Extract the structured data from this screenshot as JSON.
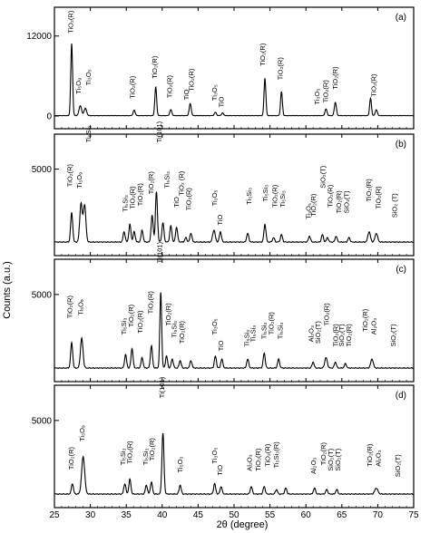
{
  "chart_data": {
    "type": "line",
    "xlabel": "2θ (degree)",
    "ylabel": "Counts (a.u.)",
    "xlim": [
      25,
      75
    ],
    "x_ticks": [
      "25",
      "30",
      "35",
      "40",
      "45",
      "50",
      "55",
      "60",
      "65",
      "70",
      "75"
    ],
    "panels": [
      {
        "label": "(a)",
        "ylim": [
          0,
          15500
        ],
        "y_ticks": [
          {
            "value": 0,
            "label": "0"
          },
          {
            "value": 12000,
            "label": "12000"
          }
        ],
        "peaks": [
          {
            "x": 27.4,
            "y": 10800,
            "w": 0.18
          },
          {
            "x": 28.6,
            "y": 1500,
            "w": 0.25
          },
          {
            "x": 29.3,
            "y": 1100,
            "w": 0.25
          },
          {
            "x": 36.1,
            "y": 800,
            "w": 0.2
          },
          {
            "x": 39.1,
            "y": 4300,
            "w": 0.18
          },
          {
            "x": 41.2,
            "y": 900,
            "w": 0.2
          },
          {
            "x": 43.9,
            "y": 1800,
            "w": 0.2
          },
          {
            "x": 47.4,
            "y": 500,
            "w": 0.2
          },
          {
            "x": 48.4,
            "y": 400,
            "w": 0.2
          },
          {
            "x": 54.3,
            "y": 5600,
            "w": 0.18
          },
          {
            "x": 56.6,
            "y": 3600,
            "w": 0.18
          },
          {
            "x": 62.8,
            "y": 1000,
            "w": 0.2
          },
          {
            "x": 64.1,
            "y": 2000,
            "w": 0.2
          },
          {
            "x": 69.0,
            "y": 2600,
            "w": 0.18
          },
          {
            "x": 69.8,
            "y": 900,
            "w": 0.2
          }
        ],
        "labels": [
          {
            "x": 27.2,
            "y": 12400,
            "text": "TiO₂(R)"
          },
          {
            "x": 28.3,
            "y": 3300,
            "text": "Ti₅O₉"
          },
          {
            "x": 29.7,
            "y": 4600,
            "text": "Ti₃O₅"
          },
          {
            "x": 35.8,
            "y": 2600,
            "text": "TiO₂(R)"
          },
          {
            "x": 38.9,
            "y": 5600,
            "text": "TiO₂(R)"
          },
          {
            "x": 41.0,
            "y": 2700,
            "text": "TiO₂(R)"
          },
          {
            "x": 43.3,
            "y": 2400,
            "text": "TiO"
          },
          {
            "x": 44.0,
            "y": 3700,
            "text": "TiO₂(R)"
          },
          {
            "x": 47.2,
            "y": 2300,
            "text": "Ti₃O₅"
          },
          {
            "x": 48.2,
            "y": 1300,
            "text": "TiO"
          },
          {
            "x": 53.9,
            "y": 7500,
            "text": "TiO₂(R)"
          },
          {
            "x": 56.4,
            "y": 5400,
            "text": "TiO₂(R)"
          },
          {
            "x": 61.5,
            "y": 1700,
            "text": "Ti₃O₅"
          },
          {
            "x": 62.7,
            "y": 2000,
            "text": "TiO₂(R)"
          },
          {
            "x": 64.0,
            "y": 4000,
            "text": "TiO₂(R)"
          },
          {
            "x": 69.4,
            "y": 2900,
            "text": "TiO₂(R)"
          }
        ]
      },
      {
        "label": "(b)",
        "ylim": [
          0,
          7000
        ],
        "y_ticks": [
          {
            "value": 5000,
            "label": "5000"
          }
        ],
        "peaks": [
          {
            "x": 27.4,
            "y": 2000,
            "w": 0.2
          },
          {
            "x": 28.7,
            "y": 2600,
            "w": 0.25
          },
          {
            "x": 29.2,
            "y": 2500,
            "w": 0.25
          },
          {
            "x": 34.7,
            "y": 700,
            "w": 0.2
          },
          {
            "x": 35.5,
            "y": 1200,
            "w": 0.2
          },
          {
            "x": 36.1,
            "y": 700,
            "w": 0.2
          },
          {
            "x": 37.2,
            "y": 800,
            "w": 0.2
          },
          {
            "x": 38.6,
            "y": 1800,
            "w": 0.2
          },
          {
            "x": 39.2,
            "y": 3400,
            "w": 0.2
          },
          {
            "x": 40.1,
            "y": 1300,
            "w": 0.2
          },
          {
            "x": 41.2,
            "y": 1100,
            "w": 0.2
          },
          {
            "x": 42.0,
            "y": 1000,
            "w": 0.2
          },
          {
            "x": 43.3,
            "y": 300,
            "w": 0.2
          },
          {
            "x": 44.0,
            "y": 600,
            "w": 0.2
          },
          {
            "x": 47.2,
            "y": 800,
            "w": 0.25
          },
          {
            "x": 48.1,
            "y": 700,
            "w": 0.2
          },
          {
            "x": 51.9,
            "y": 600,
            "w": 0.2
          },
          {
            "x": 54.3,
            "y": 1200,
            "w": 0.2
          },
          {
            "x": 55.5,
            "y": 300,
            "w": 0.2
          },
          {
            "x": 56.6,
            "y": 500,
            "w": 0.2
          },
          {
            "x": 60.5,
            "y": 400,
            "w": 0.2
          },
          {
            "x": 62.3,
            "y": 500,
            "w": 0.2
          },
          {
            "x": 63.0,
            "y": 300,
            "w": 0.2
          },
          {
            "x": 64.2,
            "y": 400,
            "w": 0.2
          },
          {
            "x": 66.0,
            "y": 300,
            "w": 0.2
          },
          {
            "x": 68.8,
            "y": 700,
            "w": 0.25
          },
          {
            "x": 69.8,
            "y": 600,
            "w": 0.25
          }
        ],
        "labels": [
          {
            "x": 27.1,
            "y": 3800,
            "text": "TiO₂(R)"
          },
          {
            "x": 28.4,
            "y": 3700,
            "text": "Ti₅O₉"
          },
          {
            "x": 29.7,
            "y": 6800,
            "text": "Ti₅Si₃"
          },
          {
            "x": 34.8,
            "y": 2100,
            "text": "Ti₅Si₃"
          },
          {
            "x": 35.8,
            "y": 2300,
            "text": "TiO₂(R)"
          },
          {
            "x": 36.9,
            "y": 2500,
            "text": "TiO₂(R)"
          },
          {
            "x": 38.4,
            "y": 3300,
            "text": "TiO₂(R)"
          },
          {
            "x": 39.5,
            "y": 6800,
            "text": "Ti(101)"
          },
          {
            "x": 40.6,
            "y": 3700,
            "text": "Ti₅Si₃"
          },
          {
            "x": 41.9,
            "y": 2400,
            "text": "TiO"
          },
          {
            "x": 42.6,
            "y": 3200,
            "text": "TiO₂ (R)"
          },
          {
            "x": 43.6,
            "y": 2200,
            "text": "TiO₂(R)"
          },
          {
            "x": 47.2,
            "y": 2500,
            "text": "Ti₃O₅"
          },
          {
            "x": 48.0,
            "y": 1200,
            "text": "TiO"
          },
          {
            "x": 52.0,
            "y": 2600,
            "text": "Ti₅Si₃"
          },
          {
            "x": 54.3,
            "y": 2800,
            "text": "Ti₅Si₃"
          },
          {
            "x": 55.6,
            "y": 2400,
            "text": "TiO₂(R)"
          },
          {
            "x": 56.7,
            "y": 2400,
            "text": "Ti₅Si₃"
          },
          {
            "x": 60.3,
            "y": 1600,
            "text": "Ti₃O₅"
          },
          {
            "x": 61.0,
            "y": 1800,
            "text": "TiO₂(R)"
          },
          {
            "x": 62.3,
            "y": 3700,
            "text": "SiO₂(T)"
          },
          {
            "x": 63.3,
            "y": 2400,
            "text": "TiO₂(R)"
          },
          {
            "x": 64.5,
            "y": 2000,
            "text": "TiO₂(R)"
          },
          {
            "x": 65.6,
            "y": 2000,
            "text": "SiO₂(T)"
          },
          {
            "x": 68.7,
            "y": 2800,
            "text": "TiO₂(R)"
          },
          {
            "x": 70.0,
            "y": 2300,
            "text": "TiO₂(R)"
          },
          {
            "x": 72.3,
            "y": 1700,
            "text": "SiO₂ (T)"
          }
        ]
      },
      {
        "label": "(c)",
        "ylim": [
          0,
          7000
        ],
        "y_ticks": [
          {
            "value": 5000,
            "label": "5000"
          }
        ],
        "peaks": [
          {
            "x": 27.4,
            "y": 1700,
            "w": 0.2
          },
          {
            "x": 28.8,
            "y": 2000,
            "w": 0.25
          },
          {
            "x": 34.9,
            "y": 900,
            "w": 0.2
          },
          {
            "x": 35.8,
            "y": 1300,
            "w": 0.2
          },
          {
            "x": 37.2,
            "y": 700,
            "w": 0.2
          },
          {
            "x": 38.5,
            "y": 1500,
            "w": 0.2
          },
          {
            "x": 39.8,
            "y": 5100,
            "w": 0.18
          },
          {
            "x": 40.6,
            "y": 800,
            "w": 0.2
          },
          {
            "x": 41.4,
            "y": 600,
            "w": 0.2
          },
          {
            "x": 42.5,
            "y": 500,
            "w": 0.2
          },
          {
            "x": 44.0,
            "y": 500,
            "w": 0.2
          },
          {
            "x": 47.4,
            "y": 800,
            "w": 0.2
          },
          {
            "x": 48.3,
            "y": 600,
            "w": 0.2
          },
          {
            "x": 51.9,
            "y": 600,
            "w": 0.2
          },
          {
            "x": 54.2,
            "y": 1000,
            "w": 0.2
          },
          {
            "x": 56.2,
            "y": 600,
            "w": 0.2
          },
          {
            "x": 61.0,
            "y": 400,
            "w": 0.2
          },
          {
            "x": 62.8,
            "y": 700,
            "w": 0.25
          },
          {
            "x": 64.1,
            "y": 400,
            "w": 0.2
          },
          {
            "x": 65.5,
            "y": 300,
            "w": 0.2
          },
          {
            "x": 69.2,
            "y": 600,
            "w": 0.25
          }
        ],
        "labels": [
          {
            "x": 27.1,
            "y": 3400,
            "text": "TiO₂(R)"
          },
          {
            "x": 28.6,
            "y": 3600,
            "text": "Ti₅O₉"
          },
          {
            "x": 34.6,
            "y": 2300,
            "text": "Ti₅Si₃"
          },
          {
            "x": 35.6,
            "y": 2800,
            "text": "TiO₂(R)"
          },
          {
            "x": 36.9,
            "y": 2400,
            "text": "TiO₂(R)"
          },
          {
            "x": 38.3,
            "y": 3700,
            "text": "TiO₂(R)"
          },
          {
            "x": 39.6,
            "y": 7100,
            "text": "Ti(101)"
          },
          {
            "x": 40.8,
            "y": 2900,
            "text": "TiO₂(R)"
          },
          {
            "x": 41.6,
            "y": 2100,
            "text": "Ti₅Si₃"
          },
          {
            "x": 42.7,
            "y": 1700,
            "text": "TiO₂(R)"
          },
          {
            "x": 47.2,
            "y": 2300,
            "text": "Ti₃O₅"
          },
          {
            "x": 48.1,
            "y": 1200,
            "text": "TiO"
          },
          {
            "x": 51.7,
            "y": 1500,
            "text": "Ti₅Si₃"
          },
          {
            "x": 52.6,
            "y": 1800,
            "text": "Ti₅Si₃"
          },
          {
            "x": 54.1,
            "y": 2000,
            "text": "Ti₅Si₃"
          },
          {
            "x": 55.1,
            "y": 2300,
            "text": "TiO₂(R)"
          },
          {
            "x": 56.4,
            "y": 2000,
            "text": "Ti₅Si₃"
          },
          {
            "x": 60.7,
            "y": 1800,
            "text": "Al₂O₃"
          },
          {
            "x": 61.6,
            "y": 1700,
            "text": "SiO₂(T)"
          },
          {
            "x": 62.8,
            "y": 2900,
            "text": "TiO₂(R)"
          },
          {
            "x": 64.1,
            "y": 1500,
            "text": "TiO₂(R)"
          },
          {
            "x": 64.9,
            "y": 1500,
            "text": "SiO₂(T)"
          },
          {
            "x": 65.9,
            "y": 1500,
            "text": "TiO₂(R)"
          },
          {
            "x": 68.2,
            "y": 2500,
            "text": "TiO₂(R)"
          },
          {
            "x": 69.4,
            "y": 2300,
            "text": "Al₂O₃"
          },
          {
            "x": 72.1,
            "y": 1500,
            "text": "SiO₂(T)"
          }
        ]
      },
      {
        "label": "(d)",
        "ylim": [
          0,
          7000
        ],
        "y_ticks": [
          {
            "value": 5000,
            "label": "5000"
          }
        ],
        "peaks": [
          {
            "x": 27.5,
            "y": 700,
            "w": 0.2
          },
          {
            "x": 29.0,
            "y": 2500,
            "w": 0.3
          },
          {
            "x": 34.8,
            "y": 700,
            "w": 0.2
          },
          {
            "x": 35.5,
            "y": 1000,
            "w": 0.2
          },
          {
            "x": 37.8,
            "y": 600,
            "w": 0.2
          },
          {
            "x": 38.5,
            "y": 800,
            "w": 0.2
          },
          {
            "x": 40.1,
            "y": 4100,
            "w": 0.2
          },
          {
            "x": 42.5,
            "y": 600,
            "w": 0.2
          },
          {
            "x": 47.3,
            "y": 700,
            "w": 0.2
          },
          {
            "x": 48.2,
            "y": 500,
            "w": 0.2
          },
          {
            "x": 52.4,
            "y": 500,
            "w": 0.2
          },
          {
            "x": 54.2,
            "y": 500,
            "w": 0.2
          },
          {
            "x": 55.9,
            "y": 300,
            "w": 0.2
          },
          {
            "x": 57.2,
            "y": 400,
            "w": 0.2
          },
          {
            "x": 61.2,
            "y": 400,
            "w": 0.2
          },
          {
            "x": 62.9,
            "y": 300,
            "w": 0.2
          },
          {
            "x": 64.3,
            "y": 300,
            "w": 0.2
          },
          {
            "x": 69.8,
            "y": 400,
            "w": 0.3
          }
        ],
        "labels": [
          {
            "x": 27.3,
            "y": 1700,
            "text": "TiO₂(R)"
          },
          {
            "x": 28.8,
            "y": 3600,
            "text": "Ti₅O₉"
          },
          {
            "x": 34.5,
            "y": 2000,
            "text": "Ti₅Si₃"
          },
          {
            "x": 35.4,
            "y": 2100,
            "text": "TiO₂(R)"
          },
          {
            "x": 37.6,
            "y": 2000,
            "text": "Ti₅Si₃"
          },
          {
            "x": 38.5,
            "y": 2300,
            "text": "TiO₂(R)"
          },
          {
            "x": 39.9,
            "y": 6500,
            "text": "Ti(101)"
          },
          {
            "x": 42.4,
            "y": 1500,
            "text": "Ti₅O₃"
          },
          {
            "x": 47.2,
            "y": 2100,
            "text": "Ti₃O₅"
          },
          {
            "x": 48.0,
            "y": 1300,
            "text": "TiO"
          },
          {
            "x": 52.1,
            "y": 1600,
            "text": "Al₂O₃"
          },
          {
            "x": 53.3,
            "y": 1600,
            "text": "TiO₂(R)"
          },
          {
            "x": 54.6,
            "y": 1900,
            "text": "TiO₂(R)"
          },
          {
            "x": 55.8,
            "y": 1800,
            "text": "Ti₅Si₃(R)"
          },
          {
            "x": 61.0,
            "y": 1400,
            "text": "Al₂O₃"
          },
          {
            "x": 62.4,
            "y": 2000,
            "text": "TiO₂(R)"
          },
          {
            "x": 63.4,
            "y": 1600,
            "text": "SiO₂(T)"
          },
          {
            "x": 64.4,
            "y": 1600,
            "text": "SiO₂(T)"
          },
          {
            "x": 68.8,
            "y": 1900,
            "text": "TiO₂(R)"
          },
          {
            "x": 70.0,
            "y": 1900,
            "text": "Al₂O₃"
          },
          {
            "x": 72.7,
            "y": 1200,
            "text": "SiO₂(T)"
          }
        ]
      }
    ]
  }
}
